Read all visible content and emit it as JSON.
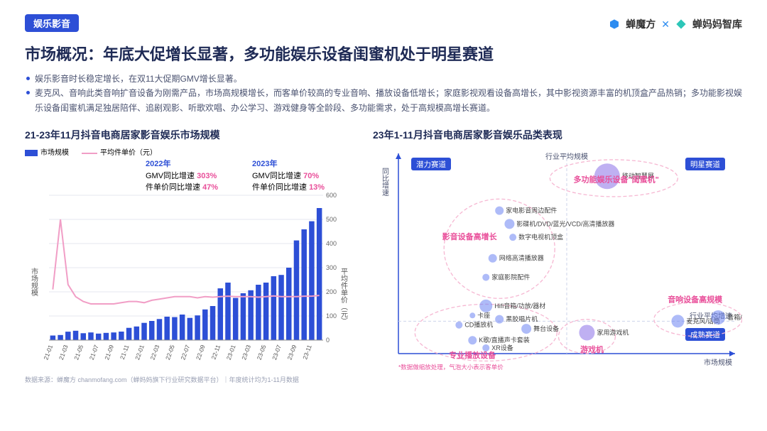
{
  "header": {
    "tag": "娱乐影音",
    "brands": {
      "left": "蝉魔方",
      "sep": "✕",
      "right": "蝉妈妈智库"
    }
  },
  "title": "市场概况：年底大促增长显著，多功能娱乐设备闺蜜机处于明星赛道",
  "bullets": [
    "娱乐影音时长稳定增长，在双11大促期GMV增长显著。",
    "麦克风、音响此类音响扩音设备为刚需产品，市场高规模增长，而客单价较高的专业音响、播放设备低增长；家庭影视观看设备高增长，其中影视资源丰富的机顶盒产品热销；多功能影视娱乐设备闺蜜机满足独居陪伴、追剧观影、听歌欢唱、办公学习、游戏健身等全龄段、多功能需求，处于高规模高增长赛道。"
  ],
  "left_chart": {
    "title": "21-23年11月抖音电商居家影音娱乐市场规模",
    "legend": {
      "bar": "市场规模",
      "line": "平均件单价（元）"
    },
    "y_left_label": "市场规模",
    "y_right_label": "平均件单价（元）",
    "x_labels": [
      "21-01",
      "21-03",
      "21-05",
      "21-07",
      "21-09",
      "21-11",
      "22-01",
      "22-03",
      "22-05",
      "22-07",
      "22-09",
      "22-11",
      "23-01",
      "23-03",
      "23-05",
      "23-07",
      "23-09",
      "23-11"
    ],
    "bars": [
      12,
      22,
      18,
      17,
      20,
      32,
      45,
      55,
      60,
      58,
      80,
      135,
      110,
      130,
      150,
      170,
      260,
      310
    ],
    "line": [
      210,
      500,
      230,
      180,
      160,
      150,
      150,
      150,
      150,
      155,
      160,
      160,
      155,
      165,
      170,
      175,
      180,
      180,
      180,
      175,
      180,
      178,
      180,
      182,
      180,
      180,
      180,
      178,
      180,
      183,
      180,
      180,
      180,
      182,
      182,
      185
    ],
    "line_x_count": 36,
    "y_left_max": 340,
    "y_right_ticks": [
      0,
      100,
      200,
      300,
      400,
      500,
      600
    ],
    "y_right_max": 600,
    "bar_color": "#2d4fd6",
    "line_color": "#f19ec6",
    "grid_color": "#e5e7ef",
    "anno_2022": {
      "year": "2022年",
      "l1a": "GMV同比增速 ",
      "l1b": "303%",
      "l2a": "件单价同比增速 ",
      "l2b": "47%"
    },
    "anno_2023": {
      "year": "2023年",
      "l1a": "GMV同比增速 ",
      "l1b": "70%",
      "l2a": "件单价同比增速 ",
      "l2b": "13%"
    }
  },
  "right_chart": {
    "title": "23年1-11月抖音电商居家影音娱乐品类表现",
    "x_axis": "市场规模",
    "y_axis": "同比增速",
    "mid_x_label": "行业平均规模",
    "mid_y_label": "行业平均增速",
    "quadrants": {
      "tl": "潜力赛道",
      "tr": "明星赛道",
      "br": "成熟赛道"
    },
    "note": "*数据做缩放处理，气泡大小表示客单价",
    "group_labels": {
      "g1": "影音设备高增长",
      "g2": "专业播放设备",
      "g3": "多功能娱乐设备\"闺蜜机\"",
      "g4": "游戏机",
      "g5": "音响设备高规模"
    },
    "bubbles": [
      {
        "label": "移动智慧屏",
        "x": 0.62,
        "y": 0.88,
        "r": 18,
        "c": "#8a6fe8"
      },
      {
        "label": "家电影音周边配件",
        "x": 0.3,
        "y": 0.7,
        "r": 6,
        "c": "#6b84f2"
      },
      {
        "label": "影碟机/DVD/蓝光/VCD/高清播放器",
        "x": 0.33,
        "y": 0.63,
        "r": 7,
        "c": "#6b84f2"
      },
      {
        "label": "数字电视机顶盒",
        "x": 0.34,
        "y": 0.56,
        "r": 5,
        "c": "#6b84f2"
      },
      {
        "label": "网络高清播放器",
        "x": 0.28,
        "y": 0.45,
        "r": 6,
        "c": "#6b84f2"
      },
      {
        "label": "家庭影院配件",
        "x": 0.26,
        "y": 0.35,
        "r": 5,
        "c": "#6b84f2"
      },
      {
        "label": "Hifi音箱/功放/器材",
        "x": 0.26,
        "y": 0.2,
        "r": 9,
        "c": "#6b84f2"
      },
      {
        "label": "卡座",
        "x": 0.22,
        "y": 0.15,
        "r": 4,
        "c": "#6b84f2"
      },
      {
        "label": "黑胶唱片机",
        "x": 0.3,
        "y": 0.13,
        "r": 6,
        "c": "#6b84f2"
      },
      {
        "label": "CD播放机",
        "x": 0.18,
        "y": 0.1,
        "r": 5,
        "c": "#6b84f2"
      },
      {
        "label": "舞台设备",
        "x": 0.38,
        "y": 0.08,
        "r": 7,
        "c": "#6b84f2"
      },
      {
        "label": "K歌/直播声卡套装",
        "x": 0.22,
        "y": 0.02,
        "r": 6,
        "c": "#6b84f2"
      },
      {
        "label": "XR设备",
        "x": 0.26,
        "y": -0.02,
        "r": 5,
        "c": "#6b84f2"
      },
      {
        "label": "家用游戏机",
        "x": 0.56,
        "y": 0.06,
        "r": 11,
        "c": "#8a6fe8"
      },
      {
        "label": "麦克风/话筒",
        "x": 0.83,
        "y": 0.12,
        "r": 9,
        "c": "#6b84f2"
      },
      {
        "label": "音箱/音响",
        "x": 0.95,
        "y": 0.14,
        "r": 10,
        "c": "#6b84f2"
      }
    ],
    "colors": {
      "axis": "#2d4fd6",
      "grid": "#cdd3ea",
      "quad_box": "#2d4fd6",
      "group_label": "#e94f9a",
      "ellipse": "#f6b7d2"
    }
  },
  "source": "数据来源：蝉魔方 chanmofang.com（蝉妈妈旗下行业研究数据平台）｜年度统计均为1-11月数据"
}
